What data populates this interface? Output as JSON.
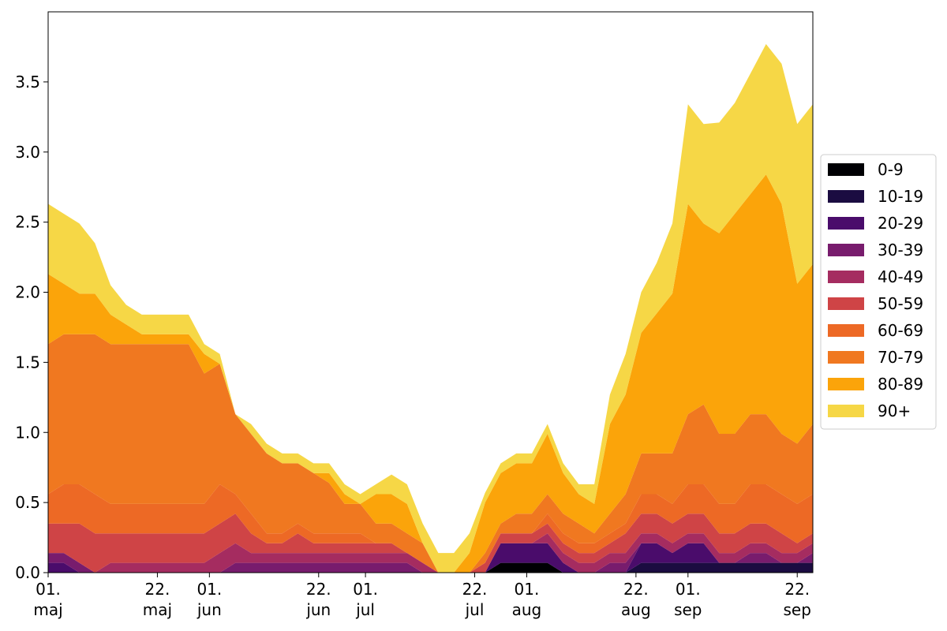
{
  "chart_data": {
    "type": "area",
    "stacked": true,
    "title": "",
    "xlabel": "",
    "ylabel": "",
    "ylim": [
      0,
      4.0
    ],
    "yticks": [
      "0.0",
      "0.5",
      "1.0",
      "1.5",
      "2.0",
      "2.5",
      "3.0",
      "3.5"
    ],
    "xticks": [
      {
        "date": "2021-05-01",
        "line1": "01.",
        "line2": "maj"
      },
      {
        "date": "2021-05-22",
        "line1": "22.",
        "line2": "maj"
      },
      {
        "date": "2021-06-01",
        "line1": "01.",
        "line2": "jun"
      },
      {
        "date": "2021-06-22",
        "line1": "22.",
        "line2": "jun"
      },
      {
        "date": "2021-07-01",
        "line1": "01.",
        "line2": "jul"
      },
      {
        "date": "2021-07-22",
        "line1": "22.",
        "line2": "jul"
      },
      {
        "date": "2021-08-01",
        "line1": "01.",
        "line2": "aug"
      },
      {
        "date": "2021-08-22",
        "line1": "22.",
        "line2": "aug"
      },
      {
        "date": "2021-09-01",
        "line1": "01.",
        "line2": "sep"
      },
      {
        "date": "2021-09-22",
        "line1": "22.",
        "line2": "sep"
      }
    ],
    "x": [
      "2021-05-01",
      "2021-05-04",
      "2021-05-07",
      "2021-05-10",
      "2021-05-13",
      "2021-05-16",
      "2021-05-19",
      "2021-05-22",
      "2021-05-25",
      "2021-05-28",
      "2021-05-31",
      "2021-06-03",
      "2021-06-06",
      "2021-06-09",
      "2021-06-12",
      "2021-06-15",
      "2021-06-18",
      "2021-06-21",
      "2021-06-24",
      "2021-06-27",
      "2021-06-30",
      "2021-07-03",
      "2021-07-06",
      "2021-07-09",
      "2021-07-12",
      "2021-07-15",
      "2021-07-18",
      "2021-07-21",
      "2021-07-24",
      "2021-07-27",
      "2021-07-30",
      "2021-08-02",
      "2021-08-05",
      "2021-08-08",
      "2021-08-11",
      "2021-08-14",
      "2021-08-17",
      "2021-08-20",
      "2021-08-23",
      "2021-08-26",
      "2021-08-29",
      "2021-09-01",
      "2021-09-04",
      "2021-09-07",
      "2021-09-10",
      "2021-09-13",
      "2021-09-16",
      "2021-09-19",
      "2021-09-22",
      "2021-09-25"
    ],
    "legend_position": "right",
    "series": [
      {
        "name": "0-9",
        "color": "#000004",
        "values": [
          0,
          0,
          0,
          0,
          0,
          0,
          0,
          0,
          0,
          0,
          0,
          0,
          0,
          0,
          0,
          0,
          0,
          0,
          0,
          0,
          0,
          0,
          0,
          0,
          0,
          0,
          0,
          0,
          0,
          0.07,
          0.07,
          0.07,
          0.07,
          0,
          0,
          0,
          0,
          0,
          0,
          0,
          0,
          0,
          0,
          0,
          0,
          0,
          0,
          0,
          0,
          0
        ]
      },
      {
        "name": "10-19",
        "color": "#1b0c41",
        "values": [
          0,
          0,
          0,
          0,
          0,
          0,
          0,
          0,
          0,
          0,
          0,
          0,
          0,
          0,
          0,
          0,
          0,
          0,
          0,
          0,
          0,
          0,
          0,
          0,
          0,
          0,
          0,
          0,
          0,
          0,
          0,
          0,
          0,
          0,
          0,
          0,
          0,
          0,
          0.07,
          0.07,
          0.07,
          0.07,
          0.07,
          0.07,
          0.07,
          0.07,
          0.07,
          0.07,
          0.07,
          0.07
        ]
      },
      {
        "name": "20-29",
        "color": "#4a0c6b",
        "values": [
          0.07,
          0.07,
          0,
          0,
          0,
          0,
          0,
          0,
          0,
          0,
          0,
          0,
          0,
          0,
          0,
          0,
          0,
          0,
          0,
          0,
          0,
          0,
          0,
          0,
          0,
          0,
          0,
          0,
          0,
          0.14,
          0.14,
          0.14,
          0.14,
          0.07,
          0,
          0,
          0,
          0,
          0.14,
          0.14,
          0.07,
          0.14,
          0.14,
          0,
          0,
          0,
          0,
          0,
          0,
          0
        ]
      },
      {
        "name": "30-39",
        "color": "#781c6d",
        "values": [
          0.07,
          0.07,
          0.07,
          0,
          0,
          0,
          0,
          0,
          0,
          0,
          0,
          0,
          0.07,
          0.07,
          0.07,
          0.07,
          0.07,
          0.07,
          0.07,
          0.07,
          0.07,
          0.07,
          0.07,
          0.07,
          0,
          0,
          0,
          0,
          0,
          0,
          0,
          0,
          0,
          0,
          0,
          0,
          0.07,
          0.07,
          0,
          0,
          0,
          0,
          0,
          0,
          0,
          0.07,
          0.07,
          0,
          0,
          0.07
        ]
      },
      {
        "name": "40-49",
        "color": "#a52c60",
        "values": [
          0,
          0,
          0,
          0,
          0.07,
          0.07,
          0.07,
          0.07,
          0.07,
          0.07,
          0.07,
          0.14,
          0.14,
          0.07,
          0.07,
          0.07,
          0.07,
          0.07,
          0.07,
          0.07,
          0.07,
          0.07,
          0.07,
          0.07,
          0.07,
          0,
          0,
          0,
          0,
          0,
          0,
          0,
          0.07,
          0.07,
          0.07,
          0.07,
          0.07,
          0.07,
          0.07,
          0.07,
          0.07,
          0.07,
          0.07,
          0.07,
          0.07,
          0.07,
          0.07,
          0.07,
          0.07,
          0.07
        ]
      },
      {
        "name": "50-59",
        "color": "#cf4446",
        "values": [
          0.21,
          0.21,
          0.28,
          0.28,
          0.21,
          0.21,
          0.21,
          0.21,
          0.21,
          0.21,
          0.21,
          0.21,
          0.21,
          0.14,
          0.07,
          0.07,
          0.14,
          0.07,
          0.07,
          0.07,
          0.07,
          0.07,
          0.07,
          0,
          0,
          0,
          0,
          0,
          0.07,
          0.07,
          0.07,
          0.07,
          0.07,
          0.07,
          0.07,
          0.07,
          0.07,
          0.14,
          0.14,
          0.14,
          0.14,
          0.14,
          0.14,
          0.14,
          0.14,
          0.14,
          0.14,
          0.14,
          0.07,
          0.07
        ]
      },
      {
        "name": "60-69",
        "color": "#ed6925",
        "values": [
          0.21,
          0.28,
          0.28,
          0.28,
          0.21,
          0.21,
          0.21,
          0.21,
          0.21,
          0.21,
          0.21,
          0.28,
          0.14,
          0.14,
          0.07,
          0.07,
          0.07,
          0.07,
          0.07,
          0.07,
          0.07,
          0,
          0,
          0,
          0,
          0,
          0,
          0,
          0,
          0,
          0,
          0,
          0.07,
          0.07,
          0.07,
          0.07,
          0.07,
          0.07,
          0.14,
          0.14,
          0.14,
          0.21,
          0.21,
          0.21,
          0.21,
          0.28,
          0.28,
          0.28,
          0.28,
          0.28
        ]
      },
      {
        "name": "70-79",
        "color": "#f07820",
        "values": [
          1.07,
          1.07,
          1.07,
          1.14,
          1.14,
          1.14,
          1.14,
          1.14,
          1.14,
          1.14,
          0.93,
          0.86,
          0.57,
          0.57,
          0.57,
          0.5,
          0.43,
          0.43,
          0.36,
          0.21,
          0.21,
          0.14,
          0.14,
          0.14,
          0.14,
          0,
          0,
          0,
          0.07,
          0.07,
          0.14,
          0.14,
          0.14,
          0.14,
          0.14,
          0.07,
          0.14,
          0.21,
          0.29,
          0.29,
          0.36,
          0.5,
          0.57,
          0.5,
          0.5,
          0.5,
          0.5,
          0.43,
          0.43,
          0.5
        ]
      },
      {
        "name": "80-89",
        "color": "#fba40a",
        "values": [
          0.5,
          0.36,
          0.29,
          0.29,
          0.21,
          0.14,
          0.07,
          0.07,
          0.07,
          0.07,
          0.14,
          0,
          0,
          0,
          0,
          0,
          0,
          0,
          0.07,
          0.07,
          0,
          0.21,
          0.21,
          0.21,
          0,
          0,
          0,
          0.14,
          0.36,
          0.36,
          0.36,
          0.36,
          0.43,
          0.29,
          0.21,
          0.21,
          0.64,
          0.71,
          0.86,
          1.0,
          1.14,
          1.5,
          1.29,
          1.43,
          1.57,
          1.57,
          1.71,
          1.64,
          1.14,
          1.14
        ]
      },
      {
        "name": "90+",
        "color": "#f6d746",
        "values": [
          0.5,
          0.5,
          0.5,
          0.36,
          0.21,
          0.14,
          0.14,
          0.14,
          0.14,
          0.14,
          0.07,
          0.07,
          0,
          0.07,
          0.07,
          0.07,
          0.07,
          0.07,
          0.07,
          0.07,
          0.07,
          0.07,
          0.14,
          0.14,
          0.14,
          0.14,
          0.14,
          0.14,
          0.07,
          0.07,
          0.07,
          0.07,
          0.07,
          0.07,
          0.07,
          0.14,
          0.21,
          0.29,
          0.29,
          0.36,
          0.5,
          0.71,
          0.71,
          0.79,
          0.79,
          0.86,
          0.93,
          1.0,
          1.14,
          1.14
        ]
      }
    ]
  }
}
